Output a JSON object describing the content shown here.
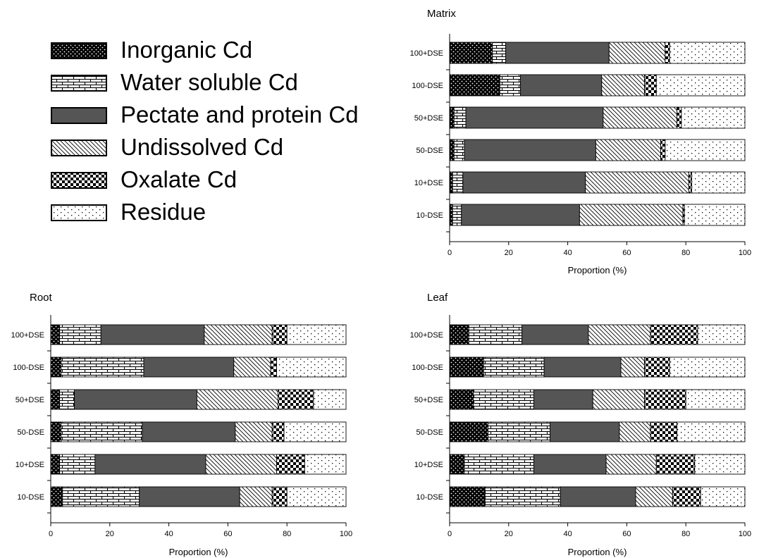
{
  "legend": {
    "items": [
      {
        "label": "Inorganic Cd",
        "pattern": "inorganic"
      },
      {
        "label": "Water soluble Cd",
        "pattern": "water"
      },
      {
        "label": "Pectate and protein Cd",
        "pattern": "pectate"
      },
      {
        "label": "Undissolved Cd",
        "pattern": "undissolved"
      },
      {
        "label": "Oxalate Cd",
        "pattern": "oxalate"
      },
      {
        "label": "Residue",
        "pattern": "residue"
      }
    ]
  },
  "chart_data": [
    {
      "type": "bar",
      "orientation": "horizontal",
      "stacked": true,
      "title": "Matrix",
      "xlabel": "Proportion (%)",
      "xlim": [
        0,
        100
      ],
      "xticks": [
        "0",
        "20",
        "40",
        "60",
        "80",
        "100"
      ],
      "categories": [
        "100+DSE",
        "100-DSE",
        "50+DSE",
        "50-DSE",
        "10+DSE",
        "10-DSE"
      ],
      "series": [
        {
          "name": "Inorganic Cd",
          "values": [
            14.5,
            17,
            1.5,
            1.5,
            1,
            1
          ]
        },
        {
          "name": "Water soluble Cd",
          "values": [
            4.5,
            7,
            4,
            3.5,
            3.5,
            3
          ]
        },
        {
          "name": "Pectate and protein Cd",
          "values": [
            35,
            27.5,
            46.5,
            44.5,
            41.5,
            40
          ]
        },
        {
          "name": "Undissolved Cd",
          "values": [
            19,
            14.5,
            25,
            22,
            35,
            35
          ]
        },
        {
          "name": "Oxalate Cd",
          "values": [
            1.5,
            4,
            1.5,
            1.5,
            1,
            0.5
          ]
        },
        {
          "name": "Residue",
          "values": [
            25.5,
            30,
            21.5,
            27,
            18,
            20.5
          ]
        }
      ]
    },
    {
      "type": "bar",
      "orientation": "horizontal",
      "stacked": true,
      "title": "Root",
      "xlabel": "Proportion (%)",
      "xlim": [
        0,
        100
      ],
      "xticks": [
        "0",
        "20",
        "40",
        "60",
        "80",
        "100"
      ],
      "categories": [
        "100+DSE",
        "100-DSE",
        "50+DSE",
        "50-DSE",
        "10+DSE",
        "10-DSE"
      ],
      "series": [
        {
          "name": "Inorganic Cd",
          "values": [
            3,
            3.5,
            3,
            3.5,
            3,
            4
          ]
        },
        {
          "name": "Water soluble Cd",
          "values": [
            14,
            28,
            5,
            27.5,
            12,
            26
          ]
        },
        {
          "name": "Pectate and protein Cd",
          "values": [
            35,
            30.5,
            41.5,
            31.5,
            37.5,
            34
          ]
        },
        {
          "name": "Undissolved Cd",
          "values": [
            23,
            12.5,
            27.5,
            12.5,
            24,
            11
          ]
        },
        {
          "name": "Oxalate Cd",
          "values": [
            5,
            2,
            12,
            4,
            9.5,
            5
          ]
        },
        {
          "name": "Residue",
          "values": [
            20,
            23.5,
            11,
            21,
            14,
            20
          ]
        }
      ]
    },
    {
      "type": "bar",
      "orientation": "horizontal",
      "stacked": true,
      "title": "Leaf",
      "xlabel": "Proportion (%)",
      "xlim": [
        0,
        100
      ],
      "xticks": [
        "0",
        "20",
        "40",
        "60",
        "80",
        "100"
      ],
      "categories": [
        "100+DSE",
        "100-DSE",
        "50+DSE",
        "50-DSE",
        "10+DSE",
        "10-DSE"
      ],
      "series": [
        {
          "name": "Inorganic Cd",
          "values": [
            6.5,
            11.5,
            8,
            13,
            5,
            12
          ]
        },
        {
          "name": "Water soluble Cd",
          "values": [
            18,
            20.5,
            20.5,
            21,
            23.5,
            25.5
          ]
        },
        {
          "name": "Pectate and protein Cd",
          "values": [
            22.5,
            26,
            20,
            23.5,
            24.5,
            25.5
          ]
        },
        {
          "name": "Undissolved Cd",
          "values": [
            21,
            8,
            17.5,
            10.5,
            17,
            12.5
          ]
        },
        {
          "name": "Oxalate Cd",
          "values": [
            16,
            8.5,
            14,
            9,
            13,
            9.5
          ]
        },
        {
          "name": "Residue",
          "values": [
            16,
            25.5,
            20,
            23,
            17,
            15
          ]
        }
      ]
    }
  ]
}
